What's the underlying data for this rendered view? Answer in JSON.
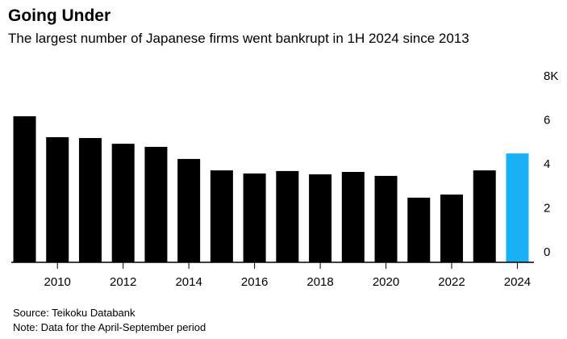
{
  "chart_data": {
    "type": "bar",
    "title": "Going Under",
    "subtitle": "The largest number of Japanese firms went bankrupt in 1H 2024 since 2013",
    "categories": [
      null,
      "2010",
      null,
      "2012",
      null,
      "2014",
      null,
      "2016",
      null,
      "2018",
      null,
      "2020",
      null,
      "2022",
      null,
      "2024"
    ],
    "values": [
      6.64,
      5.69,
      5.65,
      5.39,
      5.25,
      4.7,
      4.18,
      4.04,
      4.15,
      4.0,
      4.11,
      3.93,
      2.94,
      3.08,
      4.18,
      4.95
    ],
    "colors": [
      "#000000",
      "#000000",
      "#000000",
      "#000000",
      "#000000",
      "#000000",
      "#000000",
      "#000000",
      "#000000",
      "#000000",
      "#000000",
      "#000000",
      "#000000",
      "#000000",
      "#000000",
      "#1ab0f5"
    ],
    "ylim": [
      0,
      8
    ],
    "yticks": [
      0,
      2,
      4,
      6,
      {
        "value": 8,
        "label": "8K"
      }
    ],
    "grid": false,
    "source": "Source: Teikoku Databank",
    "note": "Note: Data for the April-September period"
  }
}
